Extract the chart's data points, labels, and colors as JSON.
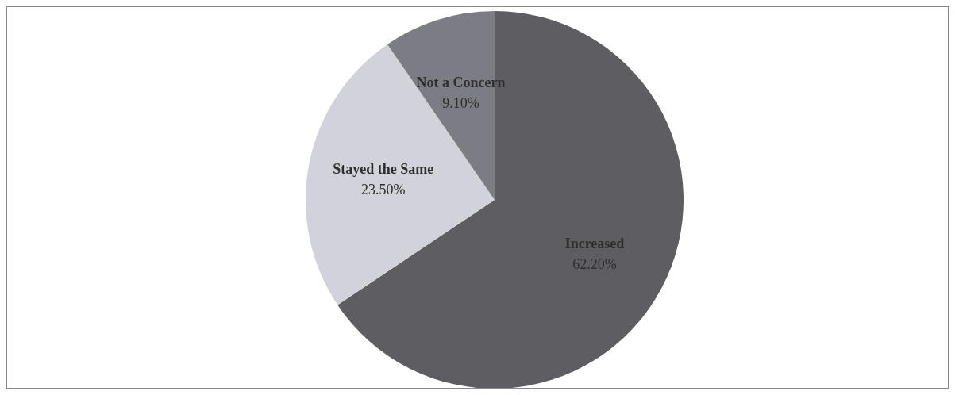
{
  "chart_data": {
    "type": "pie",
    "categories": [
      "Increased",
      "Stayed the Same",
      "Not a Concern"
    ],
    "values": [
      62.2,
      23.5,
      9.1
    ],
    "value_labels": [
      "62.20%",
      "23.50%",
      "9.10%"
    ],
    "colors": [
      "#5e5e62",
      "#d2d2da",
      "#7c7c84"
    ],
    "legend": false
  }
}
